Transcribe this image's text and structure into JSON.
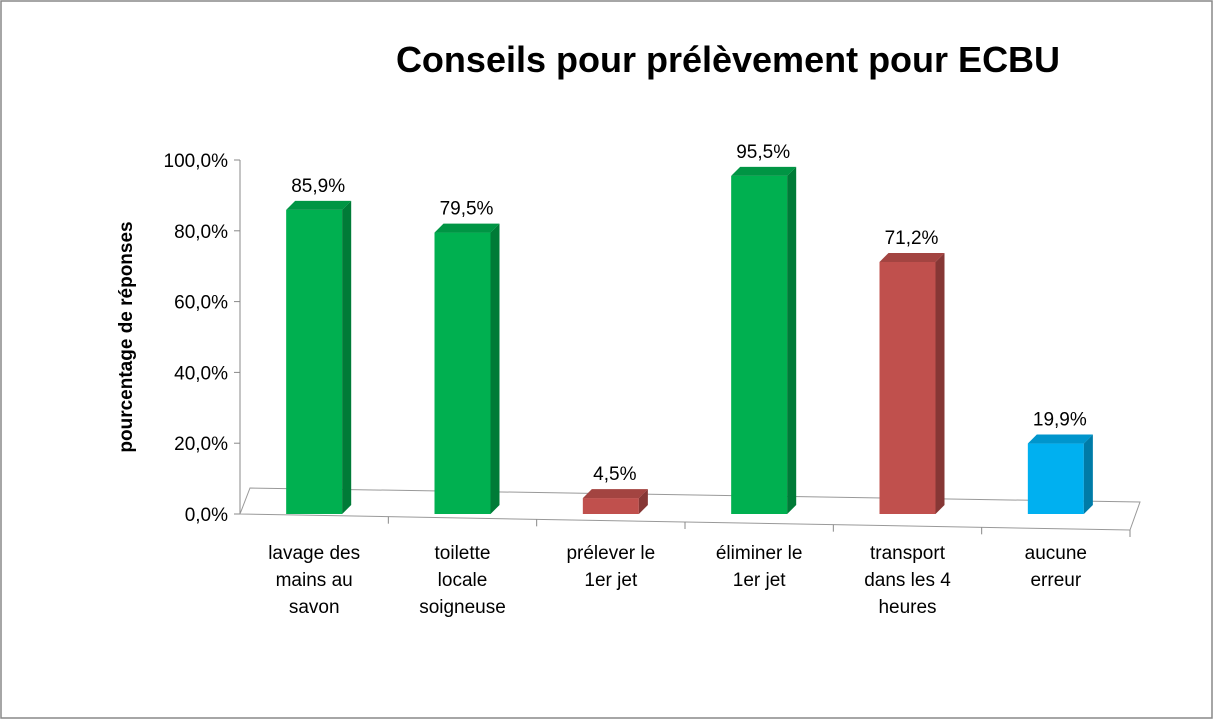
{
  "chart_data": {
    "type": "bar",
    "title": "Conseils pour prélèvement pour ECBU",
    "y_label": "pourcentage de réponses",
    "categories": [
      "lavage des\nmains au\nsavon",
      "toilette\nlocale\nsoigneuse",
      "prélever le\n1er jet",
      "éliminer le\n1er jet",
      "transport\ndans les 4\nheures",
      "aucune\nerreur"
    ],
    "values": [
      85.9,
      79.5,
      4.5,
      95.5,
      71.2,
      19.9
    ],
    "value_labels": [
      "85,9%",
      "79,5%",
      "4,5%",
      "95,5%",
      "71,2%",
      "19,9%"
    ],
    "colors": [
      "#00b050",
      "#00b050",
      "#c0504d",
      "#00b050",
      "#c0504d",
      "#00b0f0"
    ],
    "ylim": [
      0,
      100
    ],
    "yticks": [
      {
        "value": 0,
        "label": "0,0%"
      },
      {
        "value": 20,
        "label": "20,0%"
      },
      {
        "value": 40,
        "label": "40,0%"
      },
      {
        "value": 60,
        "label": "60,0%"
      },
      {
        "value": 80,
        "label": "80,0%"
      },
      {
        "value": 100,
        "label": "100,0%"
      }
    ],
    "grid": false
  }
}
